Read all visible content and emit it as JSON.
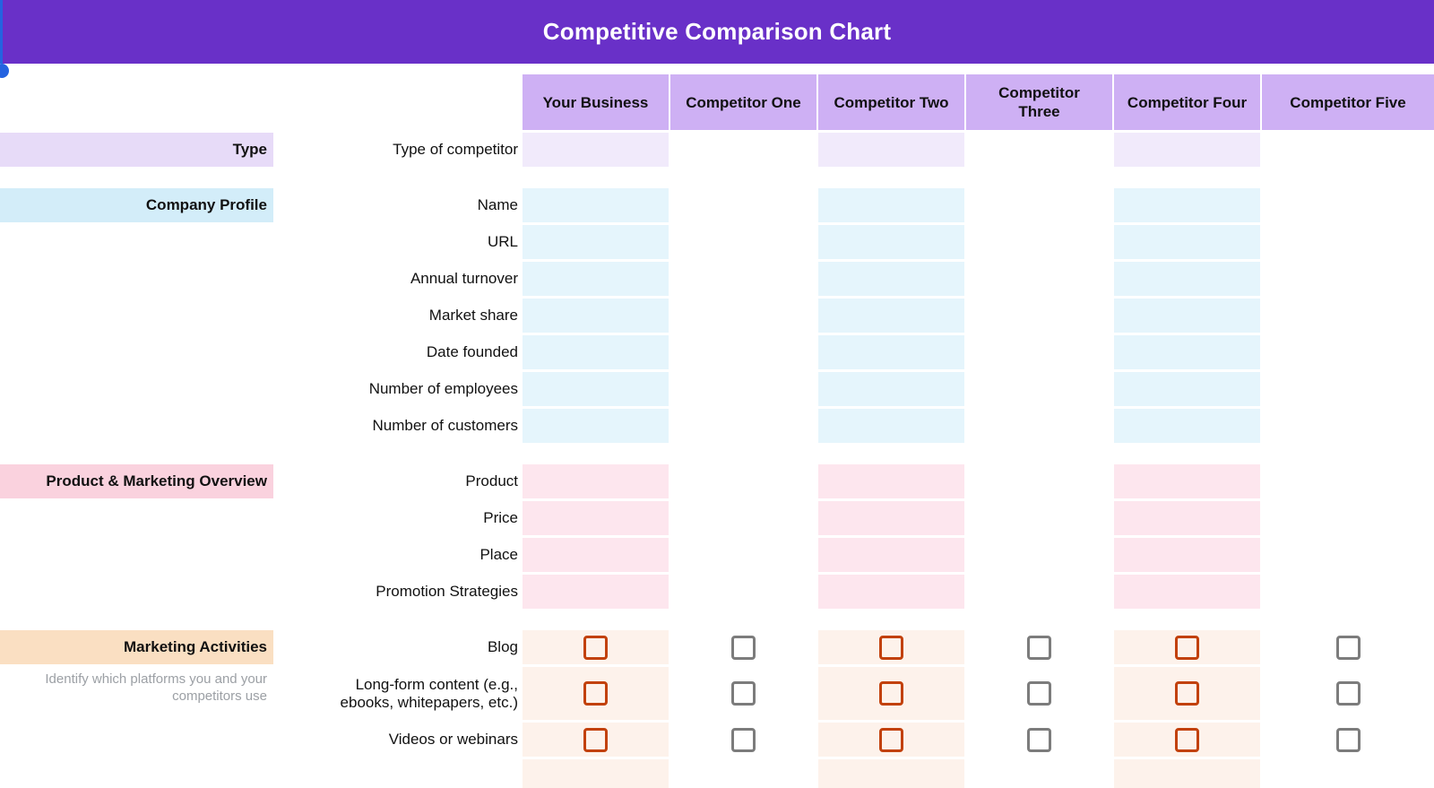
{
  "title": "Competitive Comparison Chart",
  "theme": {
    "banner_bg": "#6930C8",
    "header_cell_bg": "#CEB0F4",
    "selection_blue": "#2463E0",
    "checkbox_orange": "#C2410C",
    "checkbox_gray": "#7C7C7C",
    "subtitle_gray": "#9CA0A5",
    "text_color": "#111111"
  },
  "columns": [
    "Your Business",
    "Competitor One",
    "Competitor Two",
    "Competitor Three",
    "Competitor Four",
    "Competitor Five"
  ],
  "tinted_columns": [
    0,
    2,
    4
  ],
  "sections": [
    {
      "name": "Type",
      "bar_bg": "#E7DBF8",
      "cell_bg": "#F1EAFB",
      "rows": [
        {
          "label": "Type of competitor",
          "checkbox": false
        }
      ]
    },
    {
      "name": "Company Profile",
      "bar_bg": "#D3EDF9",
      "cell_bg": "#E5F5FC",
      "rows": [
        {
          "label": "Name",
          "checkbox": false
        },
        {
          "label": "URL",
          "checkbox": false
        },
        {
          "label": "Annual turnover",
          "checkbox": false
        },
        {
          "label": "Market share",
          "checkbox": false
        },
        {
          "label": "Date founded",
          "checkbox": false
        },
        {
          "label": "Number of employees",
          "checkbox": false
        },
        {
          "label": "Number of customers",
          "checkbox": false
        }
      ]
    },
    {
      "name": "Product & Marketing Overview",
      "bar_bg": "#FAD2DE",
      "cell_bg": "#FDE6EE",
      "rows": [
        {
          "label": "Product",
          "checkbox": false
        },
        {
          "label": "Price",
          "checkbox": false
        },
        {
          "label": "Place",
          "checkbox": false
        },
        {
          "label": "Promotion Strategies",
          "checkbox": false
        }
      ]
    },
    {
      "name": "Marketing Activities",
      "subtitle": "Identify which platforms you and your competitors use",
      "bar_bg": "#FADFC2",
      "cell_bg": "#FDF2EB",
      "rows": [
        {
          "label": "Blog",
          "checkbox": true,
          "checked": false
        },
        {
          "label": "Long-form content (e.g., ebooks, whitepapers, etc.)",
          "checkbox": true,
          "checked": false,
          "tall": true
        },
        {
          "label": "Videos or webinars",
          "checkbox": true,
          "checked": false
        },
        {
          "label": "",
          "checkbox": false,
          "partial": true
        }
      ]
    }
  ]
}
